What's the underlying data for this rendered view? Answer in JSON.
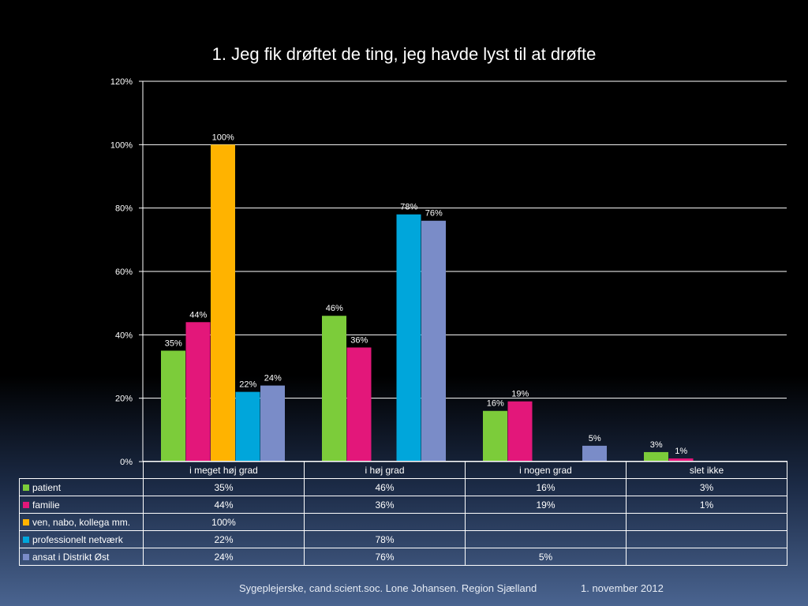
{
  "title": "1. Jeg fik drøftet de ting, jeg havde lyst til at drøfte",
  "footer": {
    "author": "Sygeplejerske, cand.scient.soc. Lone Johansen. Region Sjælland",
    "date": "1. november 2012"
  },
  "chart_data": {
    "type": "bar",
    "title": "1. Jeg fik drøftet de ting, jeg havde lyst til at drøfte",
    "categories": [
      "i meget høj grad",
      "i høj grad",
      "i nogen grad",
      "slet ikke"
    ],
    "ylim": [
      0,
      120
    ],
    "yticks": [
      "0%",
      "20%",
      "40%",
      "60%",
      "80%",
      "100%",
      "120%"
    ],
    "grid": true,
    "legend": "data-table",
    "series": [
      {
        "name": "patient",
        "color": "#7ccc3a",
        "values": [
          35,
          46,
          16,
          3
        ],
        "labels": [
          "35%",
          "46%",
          "16%",
          "3%"
        ]
      },
      {
        "name": "familie",
        "color": "#e3177a",
        "values": [
          44,
          36,
          19,
          1
        ],
        "labels": [
          "44%",
          "36%",
          "19%",
          "1%"
        ]
      },
      {
        "name": "ven, nabo, kollega mm.",
        "color": "#ffb300",
        "values": [
          100,
          null,
          null,
          null
        ],
        "labels": [
          "100%",
          "",
          "",
          ""
        ]
      },
      {
        "name": "professionelt netværk",
        "color": "#00a6db",
        "values": [
          22,
          78,
          null,
          null
        ],
        "labels": [
          "22%",
          "78%",
          "",
          ""
        ]
      },
      {
        "name": "ansat i Distrikt Øst",
        "color": "#7a8cc8",
        "values": [
          24,
          76,
          5,
          null
        ],
        "labels": [
          "24%",
          "76%",
          "5%",
          ""
        ]
      }
    ]
  }
}
